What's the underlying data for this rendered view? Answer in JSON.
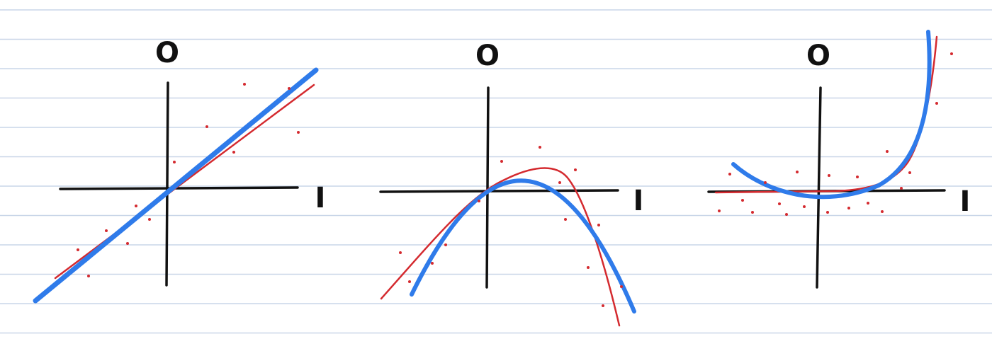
{
  "colors": {
    "paper": "#ffffff",
    "ruled_line": "#c9d6e8",
    "axes": "#111111",
    "model_curve": "#2f7bea",
    "data_curve": "#d42a2f",
    "data_points": "#d42a2f"
  },
  "panels": [
    {
      "id": "linear",
      "output_axis_label": "O",
      "input_axis_label": "I",
      "curve_shape": "straight line through origin",
      "data_curve_shape": "straight line through origin"
    },
    {
      "id": "inverted-parabola",
      "output_axis_label": "O",
      "input_axis_label": "I",
      "curve_shape": "downward-opening parabola",
      "data_curve_shape": "asymmetric hump falling steeply on the right"
    },
    {
      "id": "upward-curve",
      "output_axis_label": "O",
      "input_axis_label": "I",
      "curve_shape": "upward-opening curve rising steeply on the right",
      "data_curve_shape": "flat then rising steeply on the right"
    }
  ]
}
